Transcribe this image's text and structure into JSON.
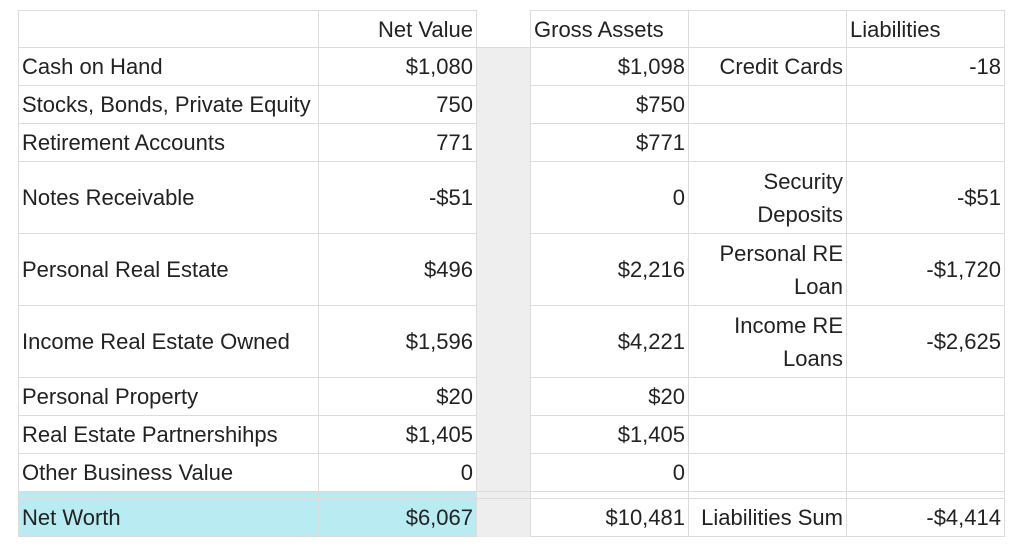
{
  "headers": {
    "label": "",
    "net_value": "Net Value",
    "gross_assets": "Gross Assets",
    "liab_label": "",
    "liabilities": "Liabilities"
  },
  "rows": [
    {
      "label": "Cash on Hand",
      "net_value": "$1,080",
      "gross_assets": "$1,098",
      "liab_label": "Credit Cards",
      "liab_value": "-18"
    },
    {
      "label": "Stocks, Bonds, Private Equity",
      "net_value": "750",
      "gross_assets": "$750",
      "liab_label": "",
      "liab_value": ""
    },
    {
      "label": "Retirement Accounts",
      "net_value": "771",
      "gross_assets": "$771",
      "liab_label": "",
      "liab_value": ""
    },
    {
      "label": "Notes Receivable",
      "net_value": "-$51",
      "gross_assets": "0",
      "liab_label": "Security Deposits",
      "liab_value": "-$51"
    },
    {
      "label": "Personal Real Estate",
      "net_value": "$496",
      "gross_assets": "$2,216",
      "liab_label": "Personal RE Loan",
      "liab_value": "-$1,720"
    },
    {
      "label": "Income Real Estate Owned",
      "net_value": "$1,596",
      "gross_assets": "$4,221",
      "liab_label": "Income RE Loans",
      "liab_value": "-$2,625"
    },
    {
      "label": "Personal Property",
      "net_value": "$20",
      "gross_assets": "$20",
      "liab_label": "",
      "liab_value": ""
    },
    {
      "label": "Real Estate Partnershihps",
      "net_value": "$1,405",
      "gross_assets": "$1,405",
      "liab_label": "",
      "liab_value": ""
    },
    {
      "label": "Other Business Value",
      "net_value": "0",
      "gross_assets": "0",
      "liab_label": "",
      "liab_value": ""
    }
  ],
  "total": {
    "label": "Net Worth",
    "net_value": "$6,067",
    "gross_assets": "$10,481",
    "liab_label": "Liabilities Sum",
    "liab_value": "-$4,414"
  },
  "colors": {
    "highlight": "#b9ecf2",
    "gap_column": "#eeeeee",
    "grid": "#dcdcdc"
  }
}
